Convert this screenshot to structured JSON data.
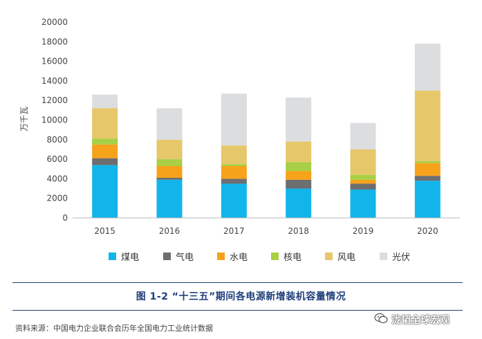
{
  "chart_data": {
    "type": "bar",
    "stacked": true,
    "categories": [
      "2015",
      "2016",
      "2017",
      "2018",
      "2019",
      "2020"
    ],
    "ylabel": "万千瓦",
    "ylim": [
      0,
      20000
    ],
    "yticks": [
      0,
      2000,
      4000,
      6000,
      8000,
      10000,
      12000,
      14000,
      16000,
      18000,
      20000
    ],
    "grid": false,
    "legend_position": "bottom",
    "series": [
      {
        "name": "煤电",
        "color": "#12b5ea",
        "values": [
          5400,
          3900,
          3500,
          3000,
          2900,
          3800
        ]
      },
      {
        "name": "气电",
        "color": "#6d6e70",
        "values": [
          700,
          200,
          500,
          900,
          600,
          500
        ]
      },
      {
        "name": "水电",
        "color": "#f7a21b",
        "values": [
          1400,
          1200,
          1300,
          900,
          400,
          1300
        ]
      },
      {
        "name": "核电",
        "color": "#a8cf45",
        "values": [
          600,
          700,
          200,
          900,
          500,
          200
        ]
      },
      {
        "name": "风电",
        "color": "#e6c76a",
        "values": [
          3100,
          2000,
          1900,
          2100,
          2600,
          7200
        ]
      },
      {
        "name": "光伏",
        "color": "#dcdddf",
        "values": [
          1400,
          3200,
          5300,
          4500,
          2700,
          4800
        ]
      }
    ]
  },
  "caption": "图 1-2 “十三五”期间各电源新增装机容量情况",
  "source": "资料来源：中国电力企业联合会历年全国电力工业统计数据",
  "watermark": "泷韬全球宏观",
  "watermark_icon": "wechat-icon"
}
